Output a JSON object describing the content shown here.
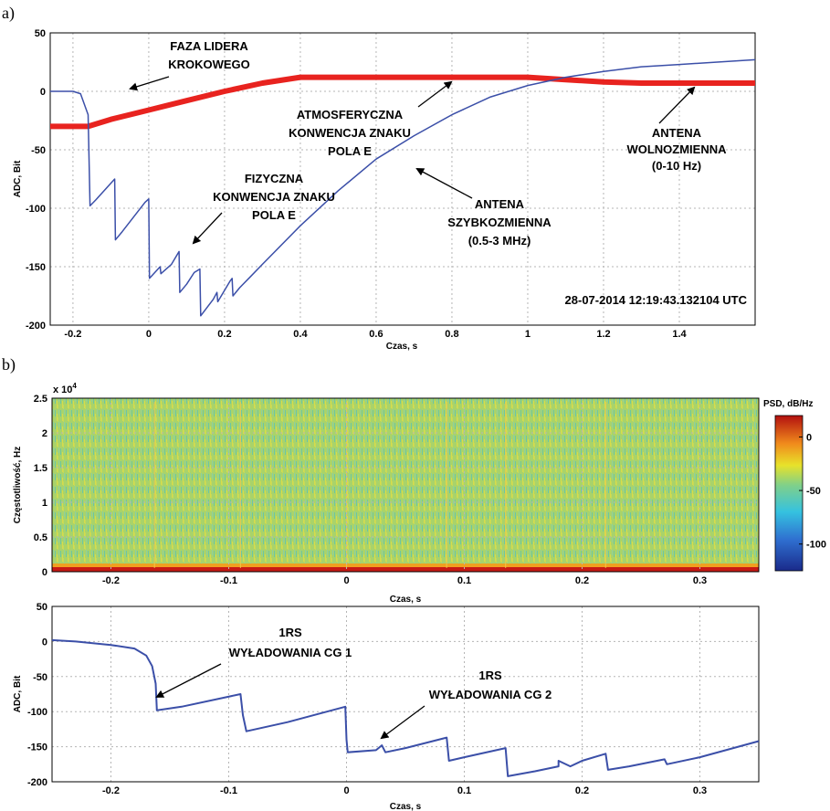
{
  "colors": {
    "fast": "#3b4fa8",
    "slow": "#e8231f"
  },
  "chart_data": [
    {
      "id": "a",
      "panel_label": "a)",
      "type": "line",
      "xlabel": "Czas, s",
      "ylabel": "ADC, Bit",
      "xlim": [
        -0.2,
        1.6
      ],
      "ylim": [
        -200,
        50
      ],
      "xticks": [
        -0.2,
        0,
        0.2,
        0.4,
        0.6,
        0.8,
        1,
        1.2,
        1.4
      ],
      "yticks": [
        50,
        0,
        -50,
        -100,
        -150,
        -200
      ],
      "grid": true,
      "timestamp": "28-07-2014 12:19:43.132104 UTC",
      "series": [
        {
          "key": "slow",
          "color": "#e8231f",
          "width": 6,
          "x": [
            -0.26,
            -0.16,
            -0.1,
            0.0,
            0.1,
            0.2,
            0.3,
            0.4,
            0.6,
            0.8,
            1.0,
            1.1,
            1.2,
            1.3,
            1.6
          ],
          "y": [
            -30,
            -30,
            -24,
            -16,
            -8,
            0,
            7,
            12,
            12,
            12,
            12,
            10,
            8,
            7,
            7
          ]
        },
        {
          "key": "fast",
          "color": "#3b4fa8",
          "width": 1.5,
          "x": [
            -0.26,
            -0.2,
            -0.18,
            -0.16,
            -0.155,
            -0.14,
            -0.09,
            -0.088,
            -0.07,
            -0.01,
            0.0,
            0.002,
            0.03,
            0.032,
            0.06,
            0.08,
            0.082,
            0.1,
            0.12,
            0.135,
            0.137,
            0.17,
            0.18,
            0.182,
            0.215,
            0.22,
            0.222,
            0.24,
            0.27,
            0.3,
            0.4,
            0.5,
            0.6,
            0.7,
            0.8,
            0.9,
            1.0,
            1.1,
            1.2,
            1.3,
            1.4,
            1.5,
            1.6
          ],
          "y": [
            0,
            0,
            -2,
            -20,
            -98,
            -93,
            -75,
            -127,
            -120,
            -95,
            -92,
            -160,
            -150,
            -156,
            -148,
            -137,
            -172,
            -165,
            -155,
            -152,
            -192,
            -178,
            -172,
            -180,
            -162,
            -160,
            -175,
            -168,
            -158,
            -148,
            -115,
            -85,
            -58,
            -38,
            -20,
            -5,
            5,
            12,
            17,
            21,
            23,
            25,
            27
          ]
        }
      ],
      "annotations": [
        {
          "lines": [
            "FAZA LIDERA",
            "KROKOWEGO"
          ]
        },
        {
          "lines": [
            "ATMOSFERYCZNA",
            "KONWENCJA ZNAKU",
            "POLA E"
          ]
        },
        {
          "lines": [
            "FIZYCZNA",
            "KONWENCJA ZNAKU",
            "POLA E"
          ]
        },
        {
          "lines": [
            "ANTENA",
            "SZYBKOZMIENNA",
            "(0.5-3 MHz)"
          ]
        },
        {
          "lines": [
            "ANTENA",
            "WOLNOZMIENNA",
            "(0-10 Hz)"
          ]
        }
      ]
    },
    {
      "id": "b1",
      "panel_label": "b)",
      "type": "heatmap",
      "xlabel": "Czas, s",
      "ylabel": "Częstotliwość, Hz",
      "xlim": [
        -0.25,
        0.35
      ],
      "ylim": [
        0,
        25000
      ],
      "xticks": [
        -0.2,
        -0.1,
        0,
        0.1,
        0.2,
        0.3
      ],
      "yticks": [
        2.5,
        2,
        1.5,
        1,
        0.5,
        0
      ],
      "y_multiplier": "x 10",
      "y_multiplier_exp": "4",
      "grid": true,
      "colorbar": {
        "label": "PSD, dB/Hz",
        "ticks": [
          0,
          -50,
          -100
        ],
        "range": [
          -125,
          20
        ]
      },
      "vertical_lines_x": [
        -0.163,
        -0.09,
        0.0,
        0.085,
        0.135,
        0.22
      ]
    },
    {
      "id": "b2",
      "type": "line",
      "xlabel": "Czas, s",
      "ylabel": "ADC, Bit",
      "xlim": [
        -0.25,
        0.35
      ],
      "ylim": [
        -200,
        50
      ],
      "xticks": [
        -0.2,
        -0.1,
        0,
        0.1,
        0.2,
        0.3
      ],
      "yticks": [
        50,
        0,
        -50,
        -100,
        -150,
        -200
      ],
      "grid": true,
      "series": [
        {
          "key": "fast",
          "color": "#3b4fa8",
          "width": 2,
          "x": [
            -0.25,
            -0.23,
            -0.2,
            -0.18,
            -0.17,
            -0.165,
            -0.162,
            -0.161,
            -0.14,
            -0.09,
            -0.088,
            -0.085,
            -0.05,
            -0.001,
            0.0,
            0.001,
            0.025,
            0.03,
            0.033,
            0.05,
            0.085,
            0.087,
            0.1,
            0.135,
            0.137,
            0.16,
            0.18,
            0.18,
            0.19,
            0.2,
            0.22,
            0.222,
            0.24,
            0.27,
            0.272,
            0.3,
            0.35
          ],
          "y": [
            2,
            0,
            -5,
            -10,
            -20,
            -35,
            -60,
            -98,
            -93,
            -75,
            -105,
            -128,
            -115,
            -93,
            -140,
            -158,
            -155,
            -148,
            -158,
            -152,
            -137,
            -170,
            -165,
            -152,
            -192,
            -185,
            -178,
            -170,
            -178,
            -170,
            -160,
            -183,
            -178,
            -168,
            -175,
            -165,
            -142
          ]
        }
      ],
      "annotations": [
        {
          "lines": [
            "1RS",
            "WYŁADOWANIA CG 1"
          ]
        },
        {
          "lines": [
            "1RS",
            "WYŁADOWANIA CG 2"
          ]
        }
      ]
    }
  ]
}
